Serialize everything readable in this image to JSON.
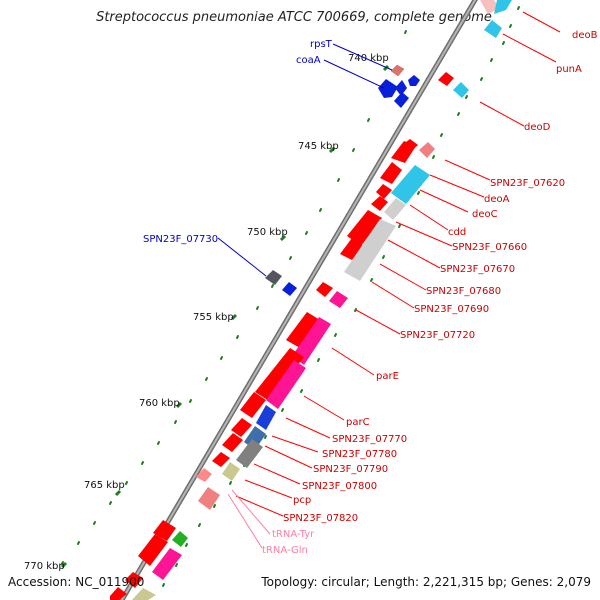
{
  "title": "Streptococcus pneumoniae ATCC 700669, complete genome",
  "accession_text": "Accession: NC_011900",
  "summary_text": "Topology: circular; Length: 2,221,315 bp; Genes: 2,079",
  "colors": {
    "backbone": "#808080",
    "cds_forward": "#ff0000",
    "cds_reverse": "#0000ff",
    "label_forward": "#cc0000",
    "label_reverse": "#0000cc",
    "trna": "#ff7f9f",
    "ticks": "#1f7f1f"
  },
  "scale_labels": [
    "740 kbp",
    "745 kbp",
    "750 kbp",
    "755 kbp",
    "760 kbp",
    "765 kbp",
    "770 kbp"
  ],
  "gene_labels_reverse": [
    "rpsT",
    "coaA",
    "SPN23F_07730"
  ],
  "gene_labels_forward": [
    "deoB",
    "punA",
    "deoD",
    "SPN23F_07620",
    "deoA",
    "deoC",
    "cdd",
    "SPN23F_07660",
    "SPN23F_07670",
    "SPN23F_07680",
    "SPN23F_07690",
    "SPN23F_07720",
    "parE",
    "parC",
    "SPN23F_07770",
    "SPN23F_07780",
    "SPN23F_07790",
    "SPN23F_07800",
    "pcp",
    "SPN23F_07820"
  ],
  "trna_labels": [
    "tRNA-Tyr",
    "tRNA-Gln"
  ]
}
